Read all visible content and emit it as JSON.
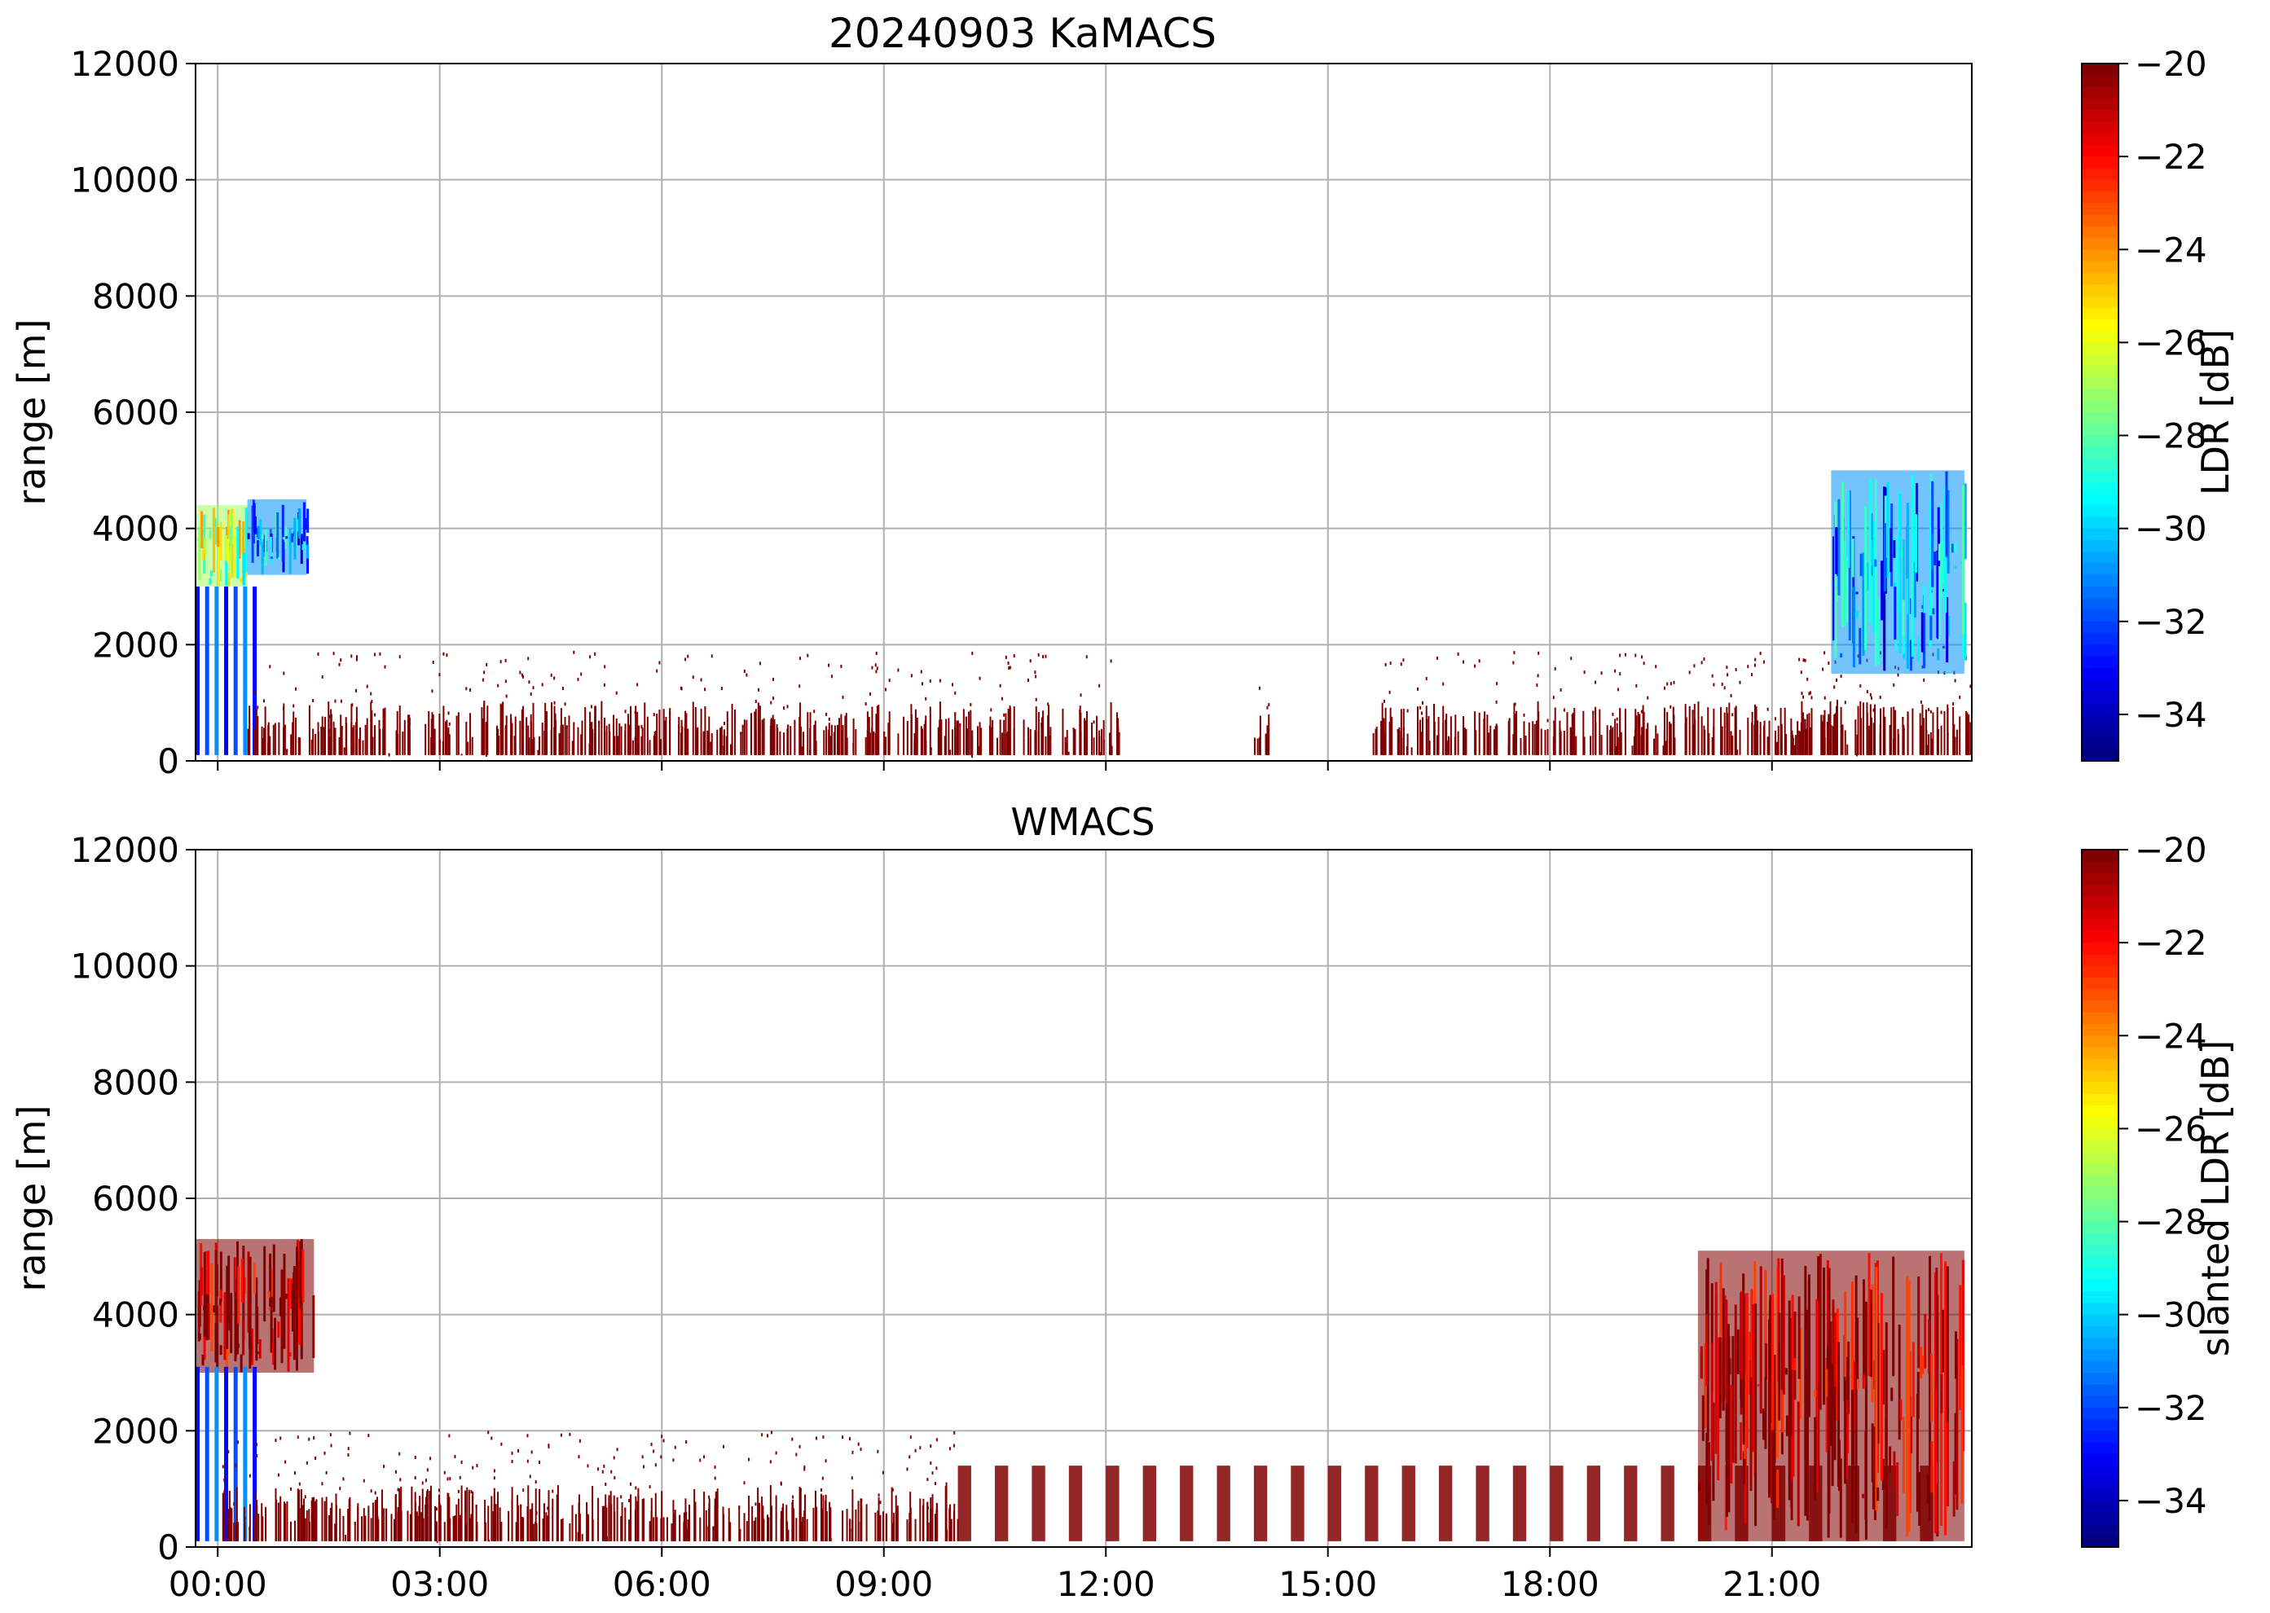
{
  "figure": {
    "title": "20240903 KaMACS"
  },
  "chart_data": [
    {
      "type": "heatmap",
      "title": "20240903 KaMACS",
      "xlabel": "",
      "ylabel": "range [m]",
      "x_tick_labels": [],
      "y_tick_labels": [
        "0",
        "2000",
        "4000",
        "6000",
        "8000",
        "10000",
        "12000"
      ],
      "ylim": [
        0,
        12000
      ],
      "xlim_hours": [
        -0.3,
        23.7
      ],
      "grid": true,
      "colorbar": {
        "label": "LDR [dB]",
        "range": [
          -35,
          -20
        ],
        "ticks": [
          "−34",
          "−32",
          "−30",
          "−28",
          "−26",
          "−24",
          "−22",
          "−20"
        ],
        "colormap": "jet"
      },
      "features": [
        {
          "kind": "cloud",
          "t_start_h": -0.3,
          "t_end_h": 0.4,
          "range_bottom_m": 3000,
          "range_top_m": 4400,
          "ldr_db": -27
        },
        {
          "kind": "cloud",
          "t_start_h": 0.4,
          "t_end_h": 1.2,
          "range_bottom_m": 3200,
          "range_top_m": 4500,
          "ldr_db": -31
        },
        {
          "kind": "shafts",
          "t_start_h": -0.3,
          "t_end_h": 0.6,
          "range_bottom_m": 100,
          "range_top_m": 3000,
          "ldr_db": -32
        },
        {
          "kind": "boundary_layer",
          "t_start_h": 0.4,
          "t_end_h": 12.2,
          "range_bottom_m": 100,
          "range_top_m": 1900,
          "ldr_db": -20
        },
        {
          "kind": "boundary_layer",
          "t_start_h": 14.0,
          "t_end_h": 14.2,
          "range_bottom_m": 100,
          "range_top_m": 1300,
          "ldr_db": -20
        },
        {
          "kind": "boundary_layer",
          "t_start_h": 15.6,
          "t_end_h": 23.7,
          "range_bottom_m": 100,
          "range_top_m": 1900,
          "ldr_db": -20
        },
        {
          "kind": "cloud",
          "t_start_h": 21.8,
          "t_end_h": 23.6,
          "range_bottom_m": 1500,
          "range_top_m": 5000,
          "ldr_db": -31
        }
      ]
    },
    {
      "type": "heatmap",
      "title": "WMACS",
      "xlabel": "",
      "ylabel": "range [m]",
      "x_tick_labels": [
        "00:00",
        "03:00",
        "06:00",
        "09:00",
        "12:00",
        "15:00",
        "18:00",
        "21:00"
      ],
      "y_tick_labels": [
        "0",
        "2000",
        "4000",
        "6000",
        "8000",
        "10000",
        "12000"
      ],
      "ylim": [
        0,
        12000
      ],
      "xlim_hours": [
        -0.3,
        23.7
      ],
      "grid": true,
      "colorbar": {
        "label": "slanted LDR [dB]",
        "range": [
          -35,
          -20
        ],
        "ticks": [
          "−34",
          "−32",
          "−30",
          "−28",
          "−26",
          "−24",
          "−22",
          "−20"
        ],
        "colormap": "jet"
      },
      "features": [
        {
          "kind": "cloud",
          "t_start_h": -0.3,
          "t_end_h": 1.3,
          "range_bottom_m": 3000,
          "range_top_m": 5300,
          "ldr_db": -20
        },
        {
          "kind": "shafts",
          "t_start_h": -0.3,
          "t_end_h": 0.6,
          "range_bottom_m": 100,
          "range_top_m": 3100,
          "ldr_db": -32
        },
        {
          "kind": "boundary_layer",
          "t_start_h": 0.0,
          "t_end_h": 10.0,
          "range_bottom_m": 100,
          "range_top_m": 2000,
          "ldr_db": -20
        },
        {
          "kind": "periodic_columns",
          "t_start_h": 10.0,
          "t_end_h": 23.2,
          "range_bottom_m": 100,
          "range_top_m": 1400,
          "ldr_db": -20
        },
        {
          "kind": "cloud",
          "t_start_h": 20.0,
          "t_end_h": 23.6,
          "range_bottom_m": 100,
          "range_top_m": 5100,
          "ldr_db": -20
        }
      ]
    }
  ]
}
